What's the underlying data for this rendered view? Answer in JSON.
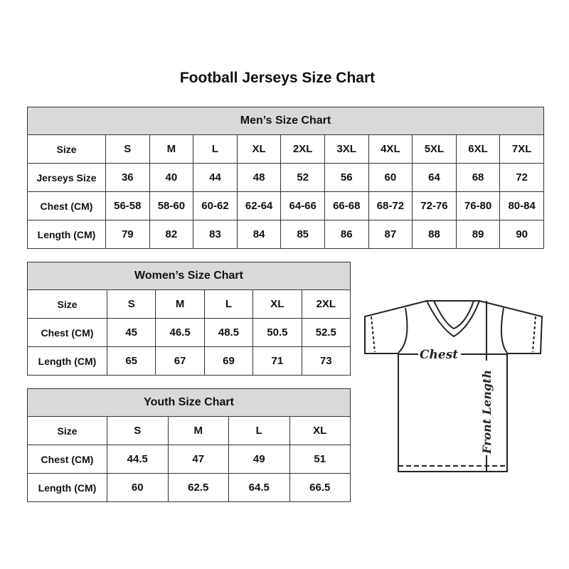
{
  "title": "Football Jerseys Size Chart",
  "men": {
    "heading": "Men’s Size Chart",
    "rows": [
      [
        "Size",
        "S",
        "M",
        "L",
        "XL",
        "2XL",
        "3XL",
        "4XL",
        "5XL",
        "6XL",
        "7XL"
      ],
      [
        "Jerseys Size",
        "36",
        "40",
        "44",
        "48",
        "52",
        "56",
        "60",
        "64",
        "68",
        "72"
      ],
      [
        "Chest (CM)",
        "56-58",
        "58-60",
        "60-62",
        "62-64",
        "64-66",
        "66-68",
        "68-72",
        "72-76",
        "76-80",
        "80-84"
      ],
      [
        "Length (CM)",
        "79",
        "82",
        "83",
        "84",
        "85",
        "86",
        "87",
        "88",
        "89",
        "90"
      ]
    ]
  },
  "women": {
    "heading": "Women’s Size Chart",
    "rows": [
      [
        "Size",
        "S",
        "M",
        "L",
        "XL",
        "2XL"
      ],
      [
        "Chest (CM)",
        "45",
        "46.5",
        "48.5",
        "50.5",
        "52.5"
      ],
      [
        "Length (CM)",
        "65",
        "67",
        "69",
        "71",
        "73"
      ]
    ]
  },
  "youth": {
    "heading": "Youth Size Chart",
    "rows": [
      [
        "Size",
        "S",
        "M",
        "L",
        "XL"
      ],
      [
        "Chest (CM)",
        "44.5",
        "47",
        "49",
        "51"
      ],
      [
        "Length (CM)",
        "60",
        "62.5",
        "64.5",
        "66.5"
      ]
    ]
  },
  "diagram": {
    "chest_label": "Chest",
    "length_label": "Front Length"
  },
  "colors": {
    "header_bg": "#d9d9d9",
    "border": "#333333",
    "line": "#2a2020"
  }
}
